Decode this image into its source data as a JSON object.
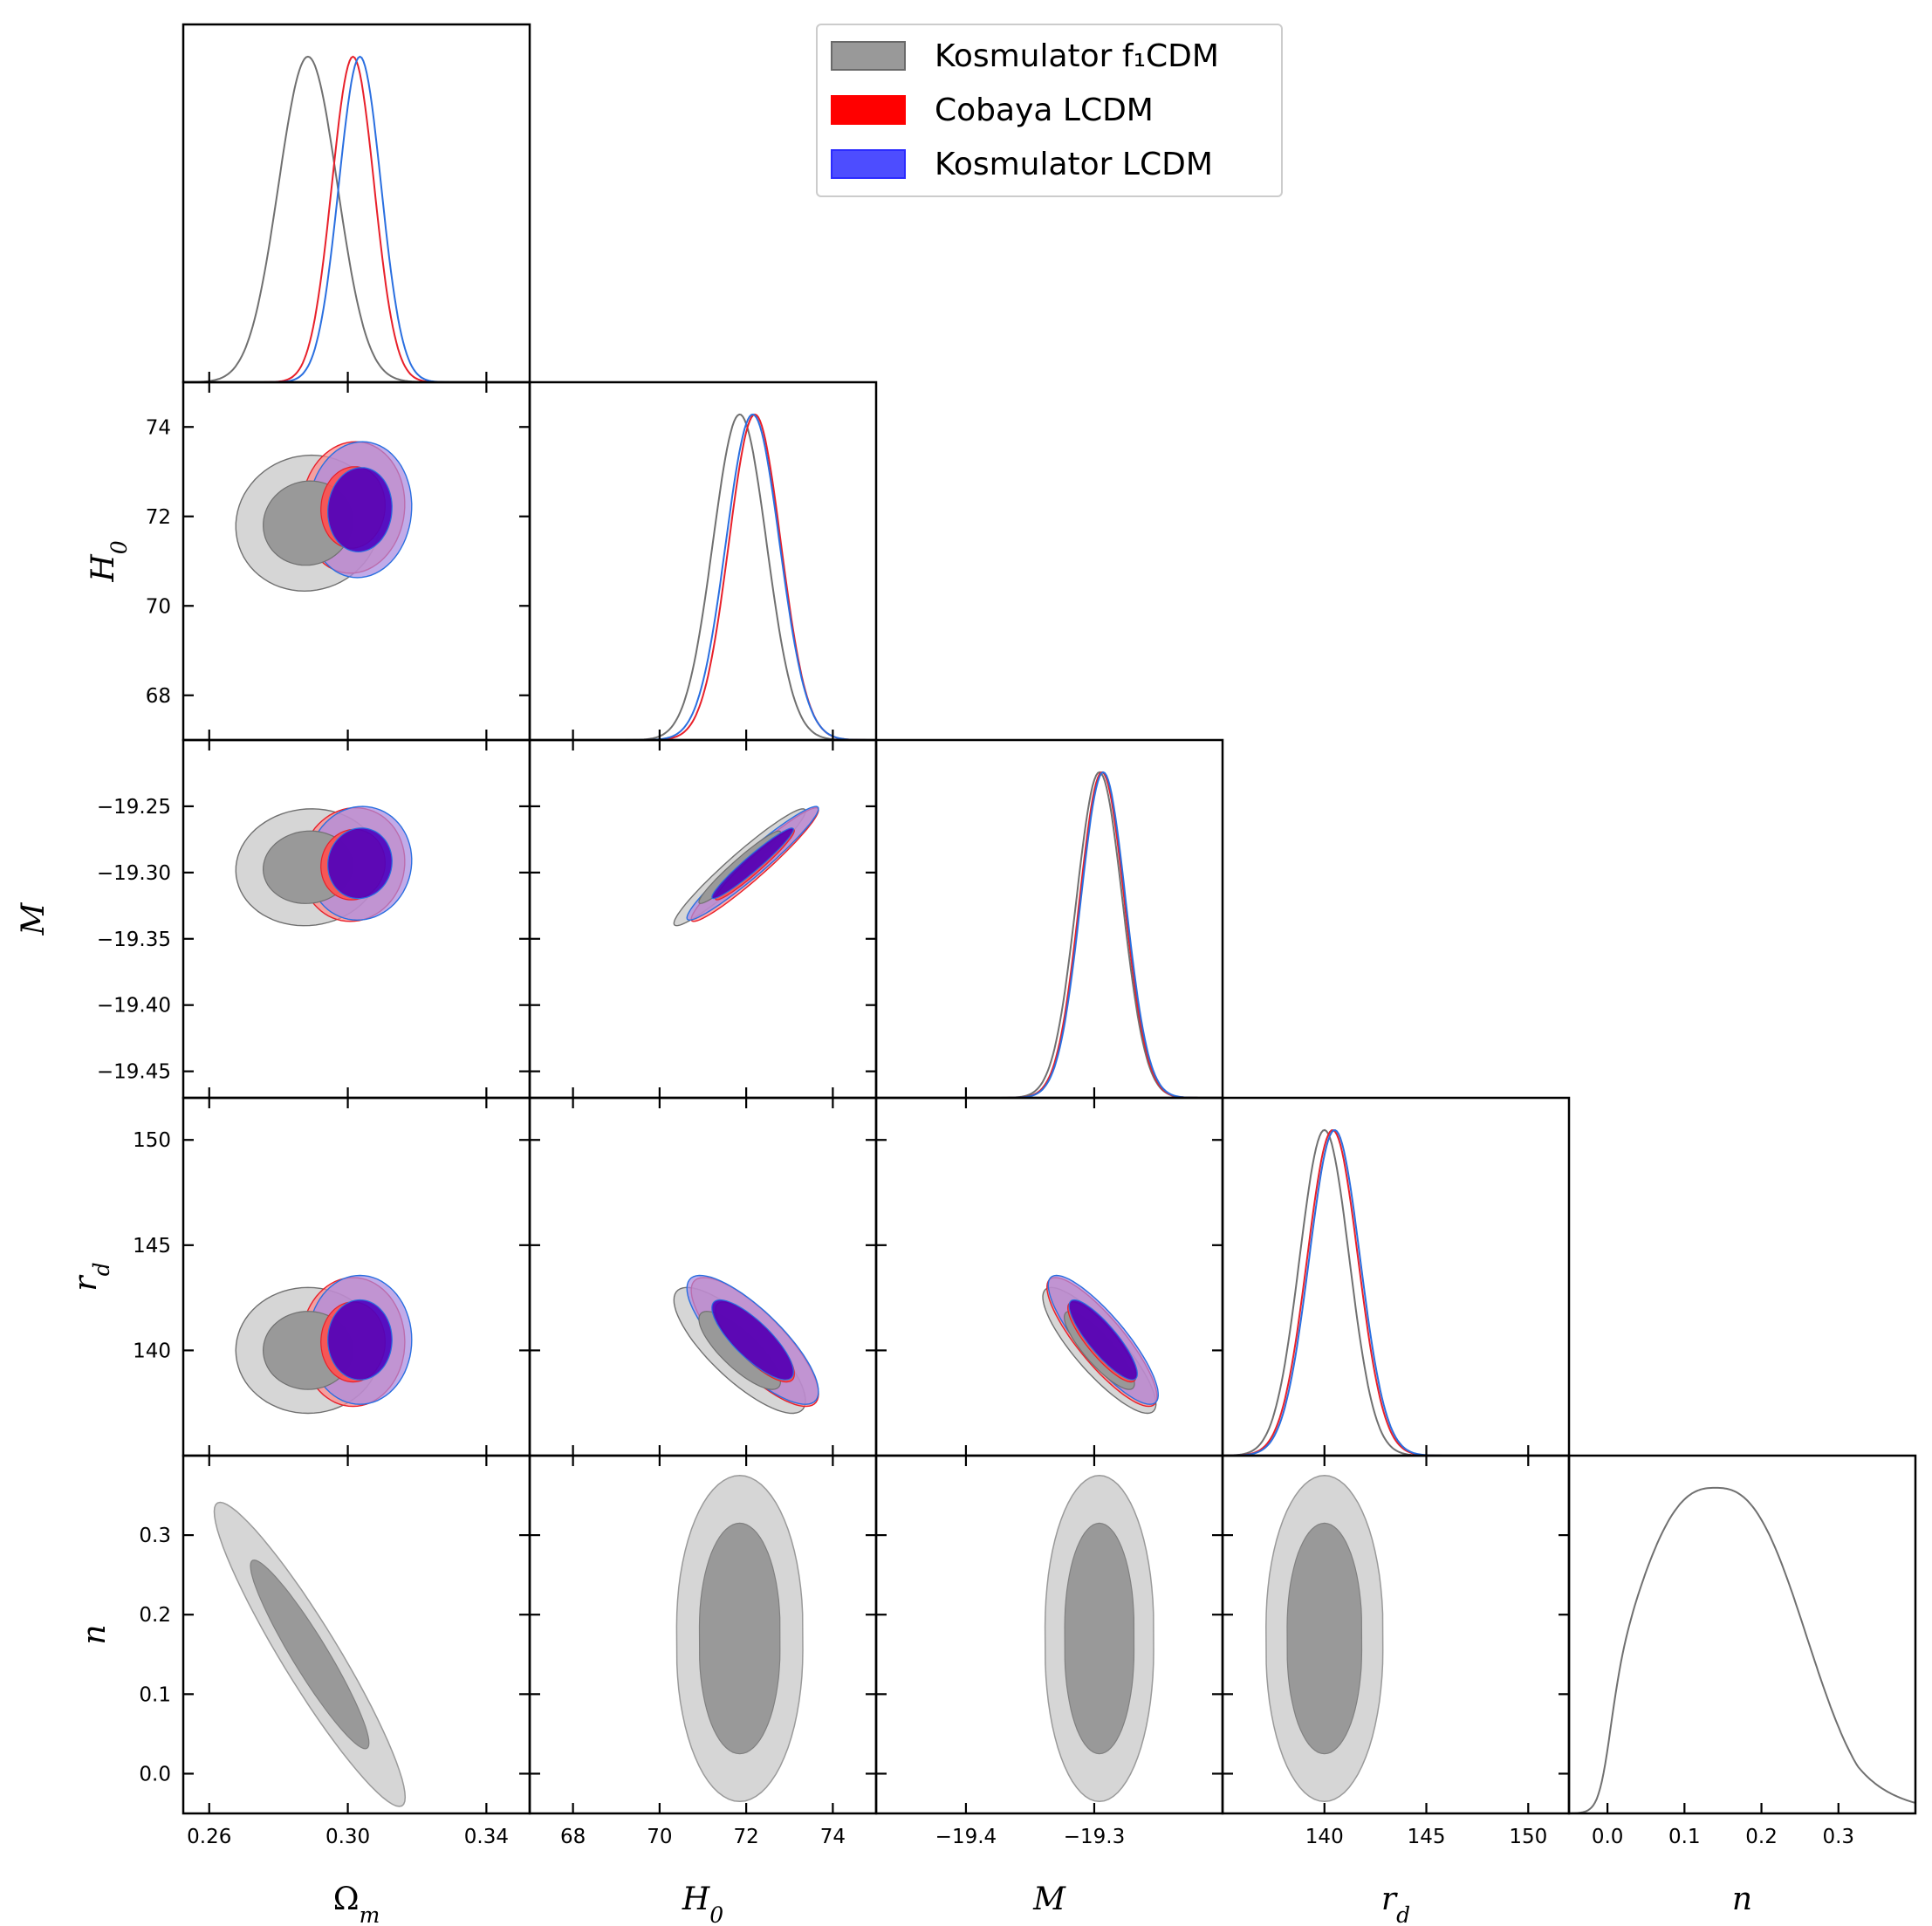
{
  "chart_data": {
    "type": "triangle-corner-plot",
    "legend": {
      "placement": "top-center",
      "entries": [
        {
          "label": "Kosmulator f₁CDM",
          "color": "#808080"
        },
        {
          "label": "Cobaya LCDM",
          "color": "#ff0000"
        },
        {
          "label": "Kosmulator LCDM",
          "color": "#2b2bff"
        }
      ]
    },
    "series_colors": {
      "Kosmulator f1CDM": {
        "line": "#707070",
        "outer": "#d6d6d6",
        "inner": "#999999"
      },
      "Cobaya LCDM": {
        "line": "#e8202a",
        "outer": "#ff8a8a",
        "inner": "#ff5050"
      },
      "Kosmulator LCDM": {
        "line": "#2a6fe0",
        "outer": "#a98ae0",
        "inner": "#4b00bf"
      }
    },
    "parameters": [
      {
        "key": "Om",
        "label": "Ωm",
        "range": [
          0.2525,
          0.3525
        ],
        "ticks": [
          0.26,
          0.3,
          0.34
        ],
        "tick_labels": [
          "0.26",
          "0.30",
          "0.34"
        ]
      },
      {
        "key": "H0",
        "label": "H0",
        "range": [
          67.0,
          75.0
        ],
        "ticks": [
          68,
          70,
          72,
          74
        ],
        "tick_labels": [
          "68",
          "70",
          "72",
          "74"
        ]
      },
      {
        "key": "M",
        "label": "M",
        "range": [
          -19.47,
          -19.2
        ],
        "ticks": [
          -19.4,
          -19.3
        ],
        "tick_labels": [
          "−19.4",
          "−19.3"
        ],
        "y_ticks": [
          -19.25,
          -19.3,
          -19.35,
          -19.4,
          -19.45
        ],
        "y_tick_labels": [
          "−19.25",
          "−19.30",
          "−19.35",
          "−19.40",
          "−19.45"
        ]
      },
      {
        "key": "rd",
        "label": "rd",
        "range": [
          135.0,
          152.0
        ],
        "ticks": [
          140,
          145,
          150
        ],
        "tick_labels": [
          "140",
          "145",
          "150"
        ]
      },
      {
        "key": "n",
        "label": "n",
        "range": [
          -0.05,
          0.4
        ],
        "ticks": [
          0.0,
          0.1,
          0.2,
          0.3
        ],
        "tick_labels": [
          "0.0",
          "0.1",
          "0.2",
          "0.3"
        ]
      }
    ],
    "axis_labels": {
      "Om": "Ω",
      "Om_sub": "m",
      "H0": "H",
      "H0_sub": "0",
      "M": "M",
      "rd": "r",
      "rd_sub": "d",
      "n": "n"
    },
    "posteriors": {
      "Kosmulator f1CDM": {
        "Om": {
          "mean": 0.2885,
          "sd": 0.0085
        },
        "H0": {
          "mean": 71.85,
          "sd": 0.62
        },
        "M": {
          "mean": -19.296,
          "sd": 0.018
        },
        "rd": {
          "mean": 140.0,
          "sd": 1.22
        },
        "n": {
          "mean": 0.14,
          "sd": 0.09,
          "range": [
            0.0,
            0.4
          ]
        }
      },
      "Cobaya LCDM": {
        "Om": {
          "mean": 0.3015,
          "sd": 0.0061
        },
        "H0": {
          "mean": 72.2,
          "sd": 0.6
        },
        "M": {
          "mean": -19.294,
          "sd": 0.0175
        },
        "rd": {
          "mean": 140.4,
          "sd": 1.25
        }
      },
      "Kosmulator LCDM": {
        "Om": {
          "mean": 0.3035,
          "sd": 0.0061
        },
        "H0": {
          "mean": 72.15,
          "sd": 0.62
        },
        "M": {
          "mean": -19.293,
          "sd": 0.0175
        },
        "rd": {
          "mean": 140.5,
          "sd": 1.25
        }
      }
    },
    "correlations": {
      "Om-H0": 0.05,
      "Om-M": 0.05,
      "Om-rd": 0.0,
      "Om-n": -0.75,
      "H0-M": 0.96,
      "H0-rd": -0.8,
      "H0-n": 0.0,
      "M-rd": -0.85,
      "M-n": 0.0,
      "rd-n": 0.0
    },
    "grid": false
  }
}
